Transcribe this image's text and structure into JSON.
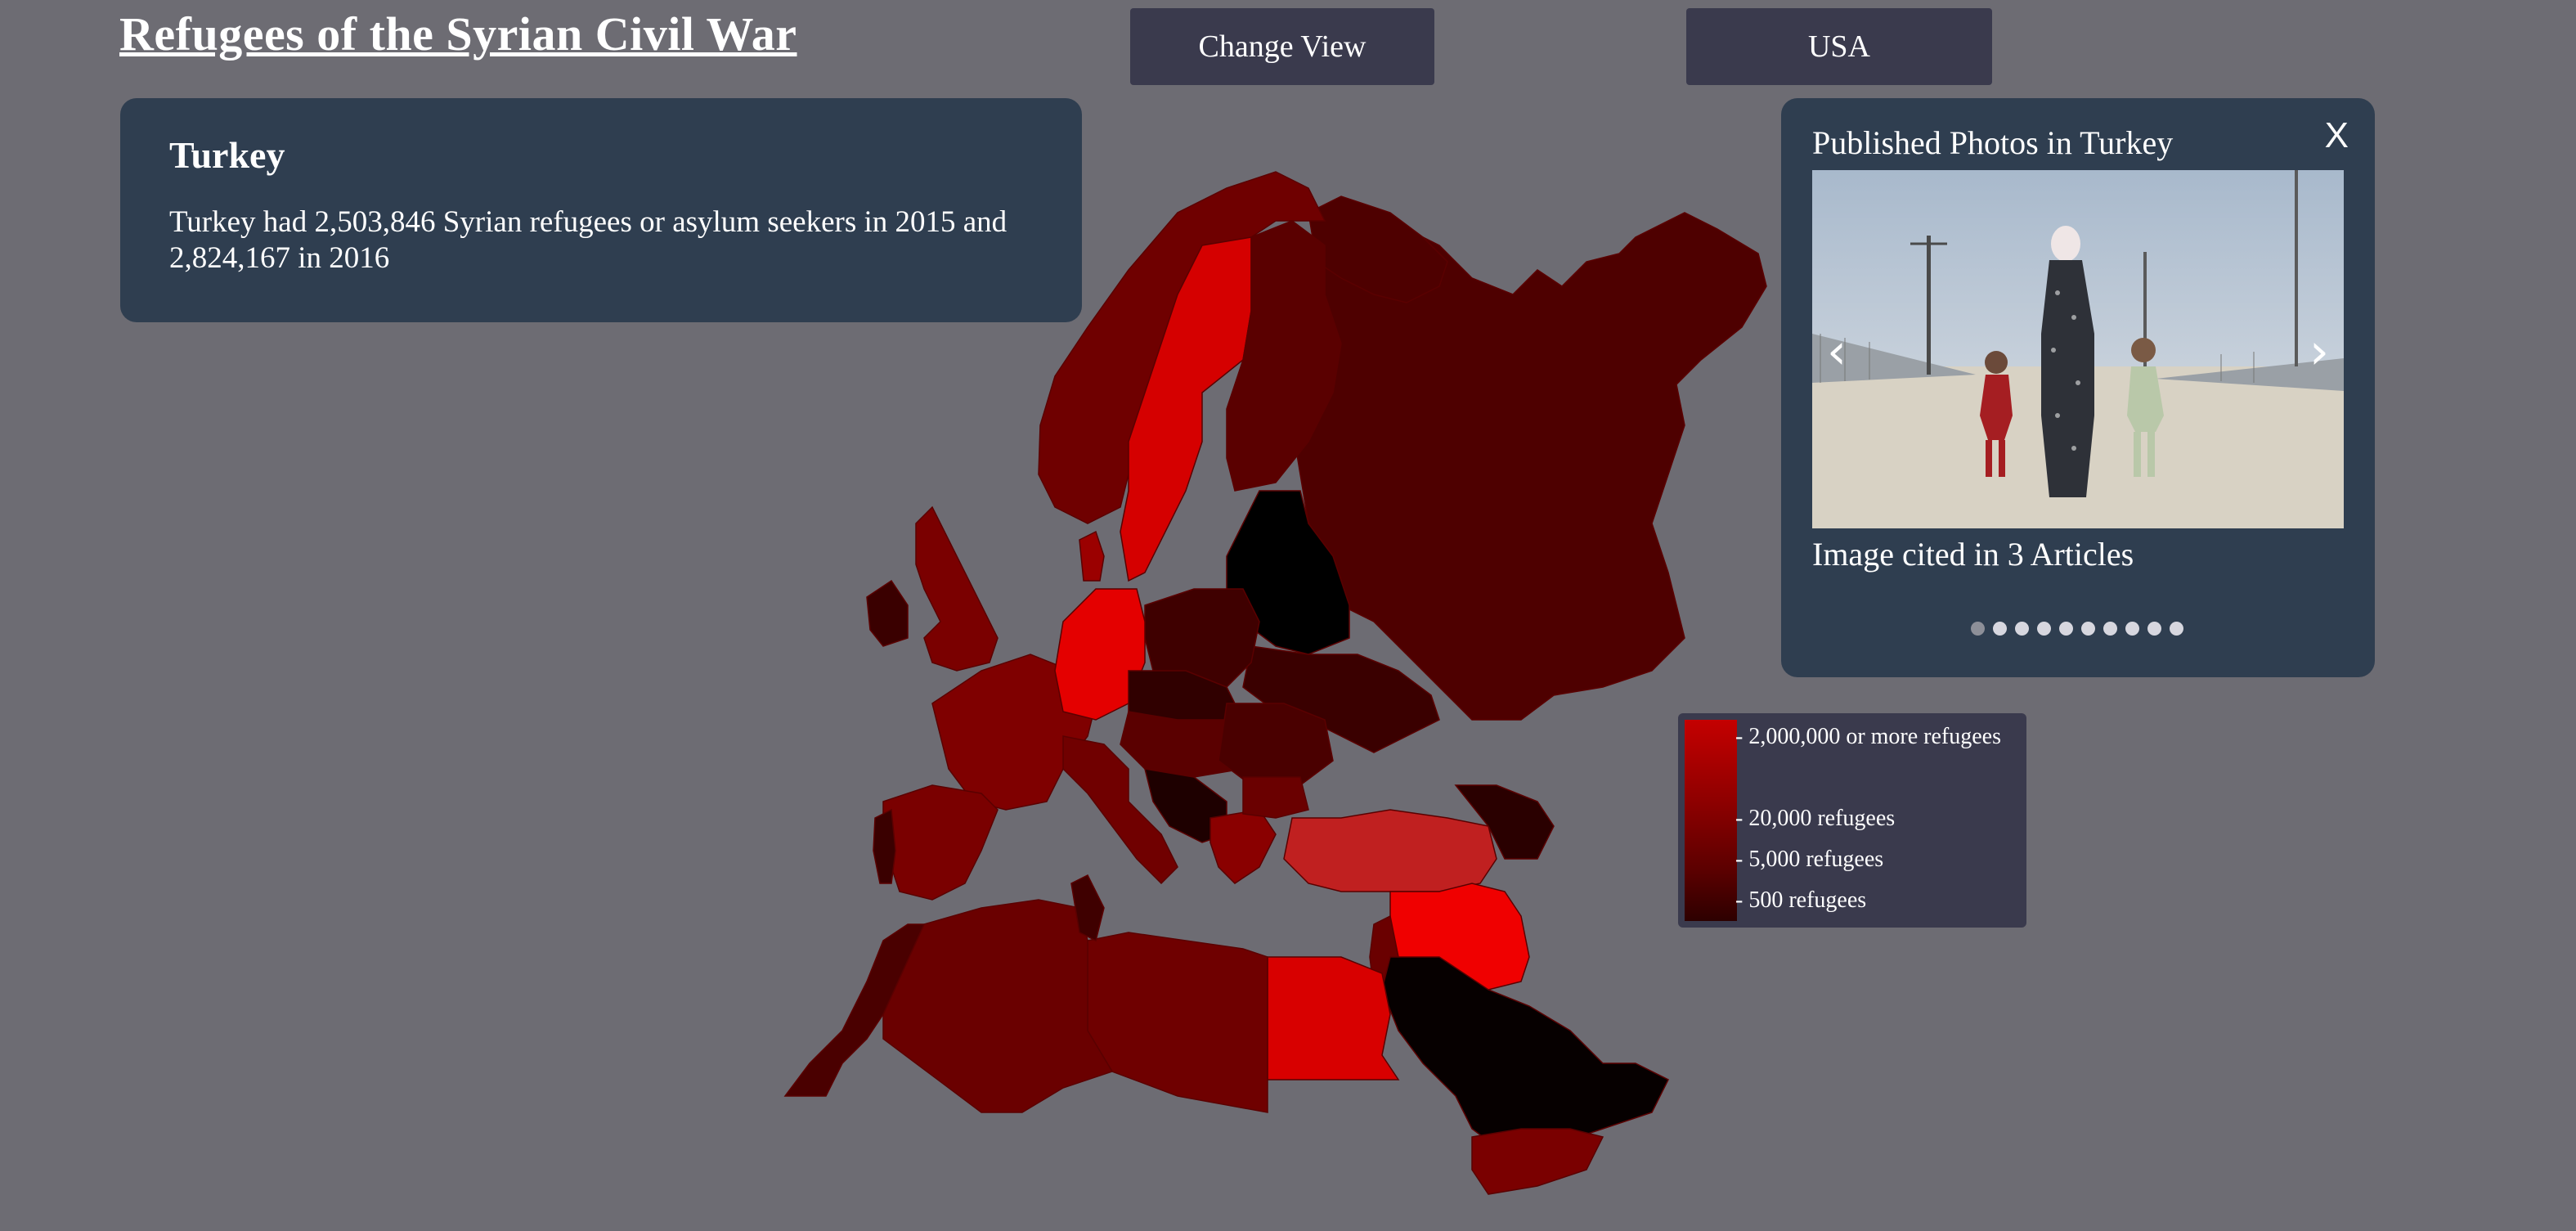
{
  "page": {
    "title": "Refugees of the Syrian Civil War"
  },
  "buttons": {
    "change_view": "Change View",
    "region": "USA"
  },
  "info": {
    "country": "Turkey",
    "description": "Turkey had 2,503,846 Syrian refugees or asylum seekers in 2015 and 2,824,167 in 2016"
  },
  "photos": {
    "title": "Published Photos in Turkey",
    "close": "X",
    "prev": "‹",
    "next": "›",
    "caption": "Image cited in 3 Articles",
    "dot_count": 10,
    "active_dot": 0
  },
  "legend": {
    "labels": [
      "- 2,000,000 or more refugees",
      "- 20,000 refugees",
      "- 5,000 refugees",
      "- 500 refugees"
    ]
  },
  "colors": {
    "background": "#6d6c73",
    "panel": "#2f3e50",
    "button": "#3a3a4d",
    "scale_high": "#e00000",
    "scale_low": "#2d0000"
  }
}
